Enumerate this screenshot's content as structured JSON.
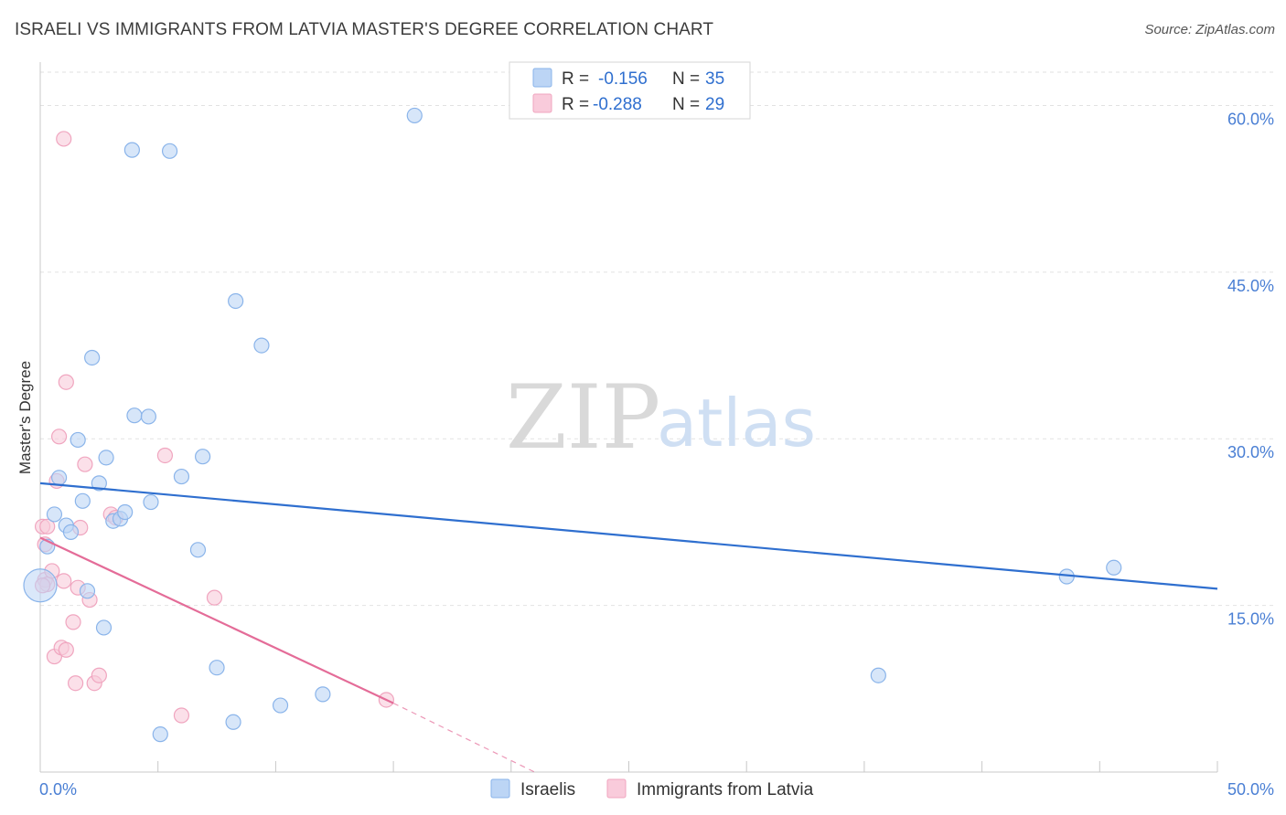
{
  "chart_data": {
    "type": "scatter",
    "title": "ISRAELI VS IMMIGRANTS FROM LATVIA MASTER'S DEGREE CORRELATION CHART",
    "source": "Source: ZipAtlas.com",
    "ylabel": "Master's Degree",
    "xlim": [
      0,
      50
    ],
    "ylim": [
      0,
      63
    ],
    "x_tick_labels": [
      "0.0%",
      "50.0%"
    ],
    "y_ticks": [
      15,
      30,
      45,
      60
    ],
    "y_tick_labels": [
      "15.0%",
      "30.0%",
      "45.0%",
      "60.0%"
    ],
    "watermark": {
      "zip": "ZIP",
      "atlas": "atlas"
    },
    "legend": {
      "r_label": "R =",
      "n_label": "N =",
      "entries": [
        {
          "r": "-0.156",
          "n": "35"
        },
        {
          "r": "-0.288",
          "n": "29"
        }
      ]
    },
    "series": [
      {
        "name": "Israelis",
        "color": "#8ab4ea",
        "fill": "#bcd5f5",
        "line_color": "#2f6fcf",
        "trend": {
          "x0": 0,
          "y0": 26.0,
          "x1": 50,
          "y1": 16.5
        },
        "points": [
          [
            0.0,
            16.8
          ],
          [
            0.3,
            20.3
          ],
          [
            0.6,
            23.2
          ],
          [
            0.8,
            26.5
          ],
          [
            1.1,
            22.2
          ],
          [
            1.3,
            21.6
          ],
          [
            1.6,
            29.9
          ],
          [
            1.8,
            24.4
          ],
          [
            2.0,
            16.3
          ],
          [
            2.2,
            37.3
          ],
          [
            2.5,
            26.0
          ],
          [
            2.7,
            13.0
          ],
          [
            2.8,
            28.3
          ],
          [
            3.1,
            22.6
          ],
          [
            3.4,
            22.8
          ],
          [
            3.6,
            23.4
          ],
          [
            3.9,
            56.0
          ],
          [
            4.0,
            32.1
          ],
          [
            4.6,
            32.0
          ],
          [
            4.7,
            24.3
          ],
          [
            5.1,
            3.4
          ],
          [
            5.5,
            55.9
          ],
          [
            6.0,
            26.6
          ],
          [
            6.7,
            20.0
          ],
          [
            6.9,
            28.4
          ],
          [
            7.5,
            9.4
          ],
          [
            8.2,
            4.5
          ],
          [
            8.3,
            42.4
          ],
          [
            9.4,
            38.4
          ],
          [
            10.2,
            6.0
          ],
          [
            12.0,
            7.0
          ],
          [
            15.9,
            59.1
          ],
          [
            35.6,
            8.7
          ],
          [
            43.6,
            17.6
          ],
          [
            45.6,
            18.4
          ]
        ]
      },
      {
        "name": "Immigrants from Latvia",
        "color": "#f0a5bf",
        "fill": "#f9cbdb",
        "line_color": "#e46c98",
        "trend": {
          "x0": 0,
          "y0": 21.1,
          "x1": 15,
          "y1": 6.2
        },
        "trend_dashed": {
          "x0": 15,
          "y0": 6.2,
          "x1": 21,
          "y1": 0.0
        },
        "points": [
          [
            0.1,
            22.1
          ],
          [
            0.2,
            20.5
          ],
          [
            0.2,
            17.3
          ],
          [
            0.3,
            22.1
          ],
          [
            0.3,
            16.9
          ],
          [
            0.5,
            18.1
          ],
          [
            0.6,
            10.4
          ],
          [
            0.7,
            26.2
          ],
          [
            0.8,
            30.2
          ],
          [
            0.9,
            11.2
          ],
          [
            1.0,
            17.2
          ],
          [
            1.0,
            57.0
          ],
          [
            1.1,
            11.0
          ],
          [
            1.1,
            35.1
          ],
          [
            1.4,
            13.5
          ],
          [
            1.5,
            8.0
          ],
          [
            1.6,
            16.6
          ],
          [
            1.7,
            22.0
          ],
          [
            1.9,
            27.7
          ],
          [
            2.1,
            15.5
          ],
          [
            2.3,
            8.0
          ],
          [
            2.5,
            8.7
          ],
          [
            3.0,
            23.2
          ],
          [
            3.2,
            22.9
          ],
          [
            5.3,
            28.5
          ],
          [
            6.0,
            5.1
          ],
          [
            7.4,
            15.7
          ],
          [
            14.7,
            6.5
          ],
          [
            0.1,
            16.8
          ]
        ]
      }
    ]
  }
}
